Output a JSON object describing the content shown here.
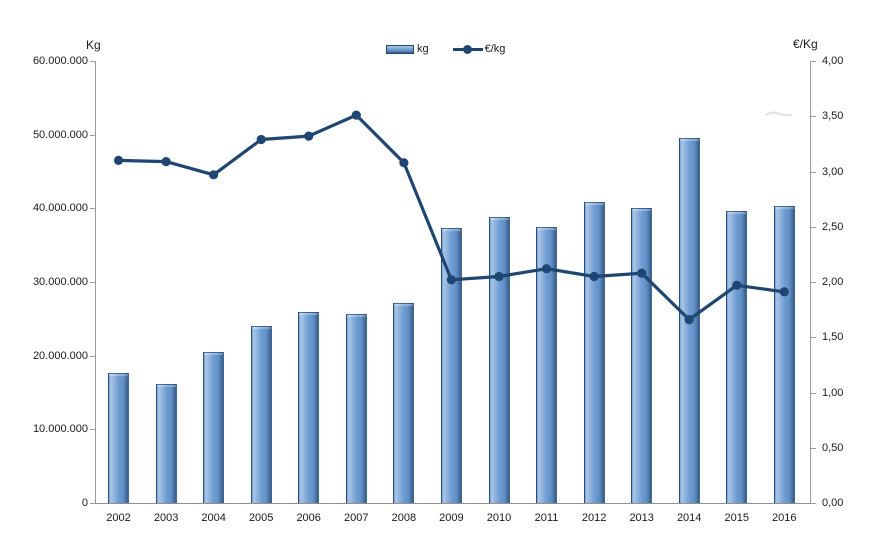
{
  "chart_data": {
    "type": "bar+line combo",
    "categories": [
      "2002",
      "2003",
      "2004",
      "2005",
      "2006",
      "2007",
      "2008",
      "2009",
      "2010",
      "2011",
      "2012",
      "2013",
      "2014",
      "2015",
      "2016"
    ],
    "series": [
      {
        "name": "kg",
        "type": "bar",
        "axis": "left",
        "values": [
          17700000,
          16100000,
          20500000,
          24000000,
          26000000,
          25700000,
          27100000,
          37400000,
          38800000,
          37500000,
          40800000,
          40100000,
          49500000,
          39700000,
          40300000
        ]
      },
      {
        "name": "€/kg",
        "type": "line",
        "axis": "right",
        "values": [
          3.1,
          3.09,
          2.97,
          3.29,
          3.32,
          3.51,
          3.08,
          2.02,
          2.05,
          2.12,
          2.05,
          2.08,
          1.66,
          1.97,
          1.91
        ]
      }
    ],
    "left_axis": {
      "title": "Kg",
      "min": 0,
      "max": 60000000,
      "tick_step": 10000000,
      "tick_labels": [
        "0",
        "10.000.000",
        "20.000.000",
        "30.000.000",
        "40.000.000",
        "50.000.000",
        "60.000.000"
      ]
    },
    "right_axis": {
      "title": "€/Kg",
      "min": 0,
      "max": 4,
      "tick_step": 0.5,
      "tick_labels": [
        "0,00",
        "0,50",
        "1,00",
        "1,50",
        "2,00",
        "2,50",
        "3,00",
        "3,50",
        "4,00"
      ]
    },
    "legend": {
      "position": "top",
      "entries": [
        {
          "label": "kg",
          "swatch": "bar"
        },
        {
          "label": "€/kg",
          "swatch": "line-marker"
        }
      ]
    },
    "grid": false,
    "colors": {
      "bar_fill": "#6D9CD3",
      "bar_highlight": "#A9C7E8",
      "bar_mid_light": "#8FB2DC",
      "bar_mid_dark": "#5F90C6",
      "bar_edge": "#4A74A6",
      "bar_edge_dark": "#32517A",
      "bar_border": "#24466E",
      "line": "#1E4670",
      "axis_line": "#9B9B9B",
      "text": "#1A1A1A"
    }
  }
}
